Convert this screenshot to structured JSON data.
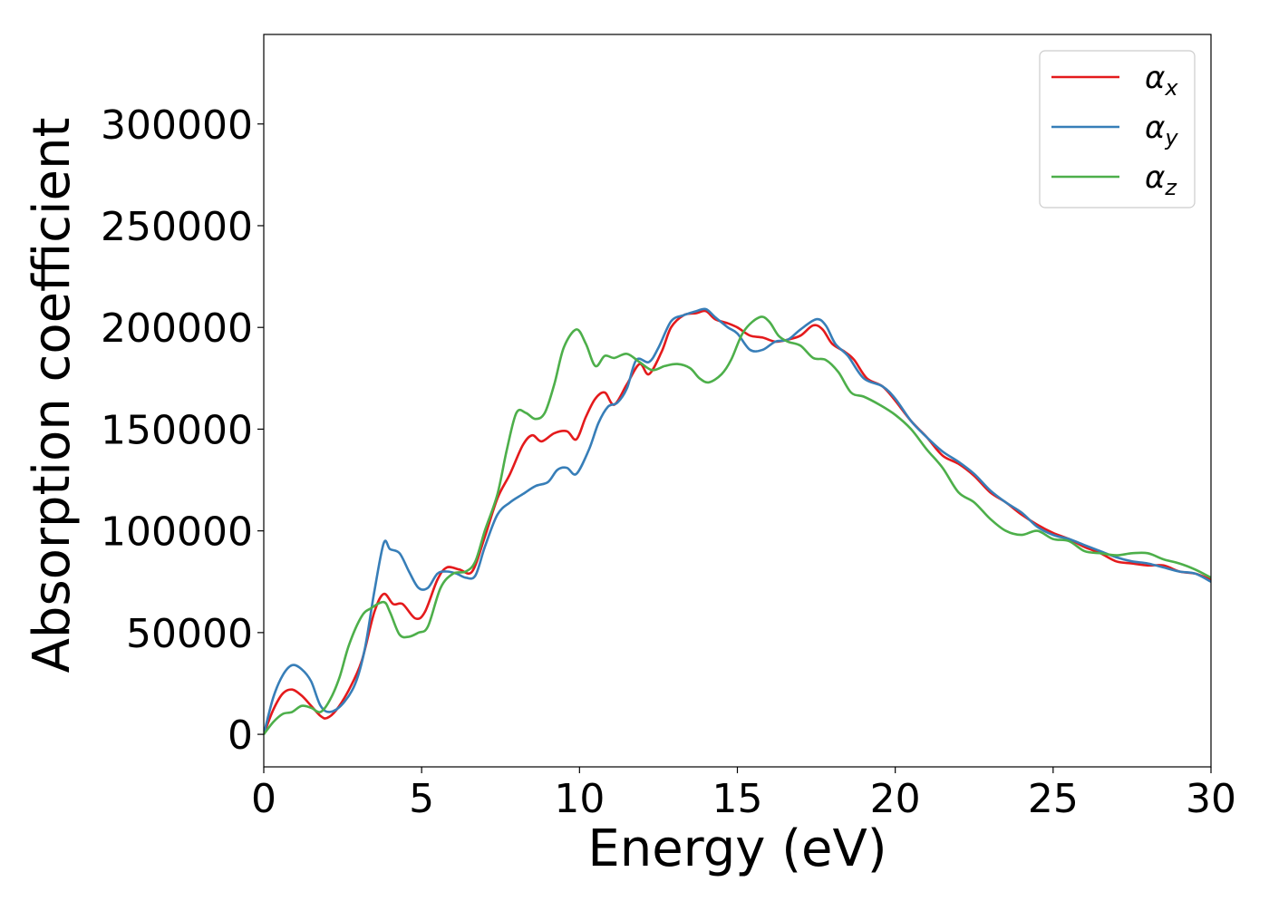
{
  "chart_data": {
    "type": "line",
    "title": "",
    "xlabel": "Energy (eV)",
    "ylabel": "Absorption coefficient",
    "xlim": [
      0,
      30
    ],
    "ylim": [
      -16000,
      344000
    ],
    "xticks": [
      0,
      5,
      10,
      15,
      20,
      25,
      30
    ],
    "yticks": [
      0,
      50000,
      100000,
      150000,
      200000,
      250000,
      300000
    ],
    "grid": false,
    "legend_position": "top-right",
    "series": [
      {
        "name": "α",
        "subscript": "x",
        "color": "#e41a1c",
        "points": [
          [
            0,
            0
          ],
          [
            0.3,
            12000
          ],
          [
            0.6,
            20000
          ],
          [
            0.9,
            22000
          ],
          [
            1.2,
            19000
          ],
          [
            1.5,
            14000
          ],
          [
            1.8,
            9000
          ],
          [
            2.0,
            8000
          ],
          [
            2.3,
            12000
          ],
          [
            2.7,
            22000
          ],
          [
            3.1,
            36000
          ],
          [
            3.5,
            60000
          ],
          [
            3.8,
            69000
          ],
          [
            4.1,
            64000
          ],
          [
            4.4,
            64000
          ],
          [
            4.8,
            57000
          ],
          [
            5.1,
            60000
          ],
          [
            5.5,
            76000
          ],
          [
            5.8,
            82000
          ],
          [
            6.2,
            81000
          ],
          [
            6.6,
            80000
          ],
          [
            7.0,
            97000
          ],
          [
            7.4,
            116000
          ],
          [
            7.8,
            128000
          ],
          [
            8.2,
            142000
          ],
          [
            8.5,
            147000
          ],
          [
            8.8,
            144000
          ],
          [
            9.2,
            148000
          ],
          [
            9.6,
            149000
          ],
          [
            9.9,
            145000
          ],
          [
            10.2,
            156000
          ],
          [
            10.5,
            165000
          ],
          [
            10.8,
            168000
          ],
          [
            11.1,
            162000
          ],
          [
            11.5,
            172000
          ],
          [
            11.9,
            182000
          ],
          [
            12.2,
            177000
          ],
          [
            12.6,
            188000
          ],
          [
            12.9,
            200000
          ],
          [
            13.3,
            206000
          ],
          [
            13.7,
            207000
          ],
          [
            14.0,
            208000
          ],
          [
            14.3,
            204000
          ],
          [
            14.7,
            202000
          ],
          [
            15.0,
            200000
          ],
          [
            15.4,
            196000
          ],
          [
            15.8,
            195000
          ],
          [
            16.2,
            193000
          ],
          [
            16.6,
            194000
          ],
          [
            17.0,
            196000
          ],
          [
            17.4,
            201000
          ],
          [
            17.7,
            199000
          ],
          [
            18.0,
            192000
          ],
          [
            18.4,
            188000
          ],
          [
            18.7,
            184000
          ],
          [
            19.1,
            175000
          ],
          [
            19.6,
            171000
          ],
          [
            20.0,
            164000
          ],
          [
            20.5,
            154000
          ],
          [
            21.0,
            146000
          ],
          [
            21.5,
            137000
          ],
          [
            22.0,
            133000
          ],
          [
            22.5,
            127000
          ],
          [
            23.0,
            119000
          ],
          [
            23.5,
            114000
          ],
          [
            24.0,
            108000
          ],
          [
            24.5,
            103000
          ],
          [
            25.0,
            99000
          ],
          [
            25.5,
            96000
          ],
          [
            26.0,
            92000
          ],
          [
            26.5,
            89000
          ],
          [
            27.0,
            85000
          ],
          [
            27.5,
            84000
          ],
          [
            28.0,
            83000
          ],
          [
            28.5,
            83000
          ],
          [
            29.0,
            80000
          ],
          [
            29.5,
            79000
          ],
          [
            30.0,
            76000
          ]
        ]
      },
      {
        "name": "α",
        "subscript": "y",
        "color": "#377eb8",
        "points": [
          [
            0,
            0
          ],
          [
            0.3,
            18000
          ],
          [
            0.6,
            29000
          ],
          [
            0.9,
            34000
          ],
          [
            1.2,
            32000
          ],
          [
            1.5,
            26000
          ],
          [
            1.8,
            14000
          ],
          [
            2.1,
            11000
          ],
          [
            2.5,
            15000
          ],
          [
            2.9,
            25000
          ],
          [
            3.2,
            42000
          ],
          [
            3.5,
            70000
          ],
          [
            3.8,
            94000
          ],
          [
            4.0,
            91000
          ],
          [
            4.3,
            89000
          ],
          [
            4.6,
            80000
          ],
          [
            4.9,
            72000
          ],
          [
            5.2,
            72000
          ],
          [
            5.5,
            79000
          ],
          [
            5.8,
            80000
          ],
          [
            6.1,
            79000
          ],
          [
            6.4,
            77000
          ],
          [
            6.7,
            78000
          ],
          [
            7.0,
            92000
          ],
          [
            7.4,
            108000
          ],
          [
            7.8,
            114000
          ],
          [
            8.2,
            118000
          ],
          [
            8.6,
            122000
          ],
          [
            9.0,
            124000
          ],
          [
            9.3,
            130000
          ],
          [
            9.6,
            131000
          ],
          [
            9.9,
            128000
          ],
          [
            10.3,
            140000
          ],
          [
            10.6,
            153000
          ],
          [
            10.9,
            161000
          ],
          [
            11.2,
            163000
          ],
          [
            11.5,
            170000
          ],
          [
            11.8,
            184000
          ],
          [
            12.2,
            183000
          ],
          [
            12.5,
            190000
          ],
          [
            12.9,
            203000
          ],
          [
            13.3,
            206000
          ],
          [
            13.7,
            208000
          ],
          [
            14.0,
            209000
          ],
          [
            14.3,
            205000
          ],
          [
            14.7,
            200000
          ],
          [
            15.0,
            197000
          ],
          [
            15.4,
            189000
          ],
          [
            15.8,
            189000
          ],
          [
            16.2,
            193000
          ],
          [
            16.6,
            194000
          ],
          [
            17.0,
            199000
          ],
          [
            17.5,
            204000
          ],
          [
            17.8,
            201000
          ],
          [
            18.1,
            192000
          ],
          [
            18.5,
            186000
          ],
          [
            19.0,
            175000
          ],
          [
            19.6,
            171000
          ],
          [
            20.0,
            165000
          ],
          [
            20.5,
            154000
          ],
          [
            21.0,
            146000
          ],
          [
            21.5,
            139000
          ],
          [
            22.0,
            134000
          ],
          [
            22.5,
            128000
          ],
          [
            23.0,
            120000
          ],
          [
            23.5,
            114000
          ],
          [
            24.0,
            109000
          ],
          [
            24.5,
            102000
          ],
          [
            25.0,
            98000
          ],
          [
            25.5,
            96000
          ],
          [
            26.0,
            93000
          ],
          [
            26.5,
            90000
          ],
          [
            27.0,
            87000
          ],
          [
            27.5,
            85000
          ],
          [
            28.0,
            84000
          ],
          [
            28.5,
            82000
          ],
          [
            29.0,
            80000
          ],
          [
            29.5,
            79000
          ],
          [
            30.0,
            75000
          ]
        ]
      },
      {
        "name": "α",
        "subscript": "z",
        "color": "#4daf4a",
        "points": [
          [
            0,
            0
          ],
          [
            0.3,
            6000
          ],
          [
            0.6,
            10000
          ],
          [
            0.9,
            11000
          ],
          [
            1.2,
            14000
          ],
          [
            1.5,
            13000
          ],
          [
            1.8,
            11000
          ],
          [
            2.1,
            17000
          ],
          [
            2.4,
            28000
          ],
          [
            2.7,
            44000
          ],
          [
            3.1,
            58000
          ],
          [
            3.4,
            62000
          ],
          [
            3.8,
            65000
          ],
          [
            4.0,
            60000
          ],
          [
            4.3,
            49000
          ],
          [
            4.6,
            48000
          ],
          [
            4.9,
            50000
          ],
          [
            5.2,
            53000
          ],
          [
            5.6,
            72000
          ],
          [
            6.0,
            79000
          ],
          [
            6.4,
            80000
          ],
          [
            6.7,
            85000
          ],
          [
            7.0,
            100000
          ],
          [
            7.4,
            118000
          ],
          [
            7.7,
            140000
          ],
          [
            8.0,
            158000
          ],
          [
            8.3,
            158000
          ],
          [
            8.6,
            155000
          ],
          [
            8.9,
            158000
          ],
          [
            9.2,
            172000
          ],
          [
            9.5,
            190000
          ],
          [
            9.9,
            199000
          ],
          [
            10.2,
            192000
          ],
          [
            10.5,
            181000
          ],
          [
            10.8,
            186000
          ],
          [
            11.1,
            185000
          ],
          [
            11.5,
            187000
          ],
          [
            11.9,
            183000
          ],
          [
            12.3,
            179000
          ],
          [
            12.7,
            181000
          ],
          [
            13.1,
            182000
          ],
          [
            13.5,
            180000
          ],
          [
            13.8,
            175000
          ],
          [
            14.1,
            173000
          ],
          [
            14.5,
            177000
          ],
          [
            14.8,
            184000
          ],
          [
            15.2,
            198000
          ],
          [
            15.7,
            205000
          ],
          [
            16.0,
            203000
          ],
          [
            16.3,
            196000
          ],
          [
            16.6,
            193000
          ],
          [
            17.0,
            191000
          ],
          [
            17.4,
            185000
          ],
          [
            17.8,
            184000
          ],
          [
            18.2,
            178000
          ],
          [
            18.6,
            168000
          ],
          [
            19.0,
            166000
          ],
          [
            19.5,
            162000
          ],
          [
            20.0,
            157000
          ],
          [
            20.5,
            150000
          ],
          [
            21.0,
            140000
          ],
          [
            21.5,
            131000
          ],
          [
            22.0,
            119000
          ],
          [
            22.5,
            114000
          ],
          [
            23.0,
            106000
          ],
          [
            23.5,
            100000
          ],
          [
            24.0,
            98000
          ],
          [
            24.5,
            100000
          ],
          [
            25.0,
            96000
          ],
          [
            25.5,
            95000
          ],
          [
            26.0,
            90000
          ],
          [
            26.5,
            89000
          ],
          [
            27.0,
            88000
          ],
          [
            27.5,
            89000
          ],
          [
            28.0,
            89000
          ],
          [
            28.5,
            86000
          ],
          [
            29.0,
            84000
          ],
          [
            29.5,
            81000
          ],
          [
            30.0,
            77000
          ]
        ]
      }
    ]
  }
}
